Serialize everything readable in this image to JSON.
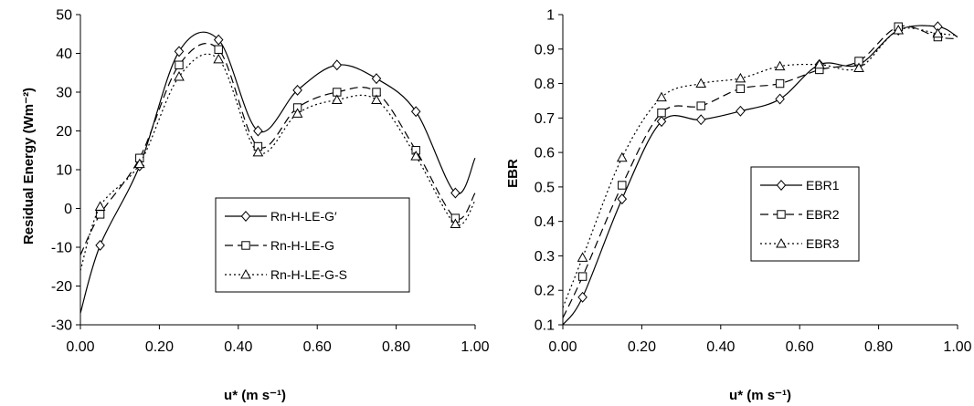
{
  "chart_data": [
    {
      "type": "line",
      "ylabel": "Residual Energy (Wm⁻²)",
      "xlabel": "u* (m s⁻¹)",
      "xlim": [
        0,
        1.0
      ],
      "ylim": [
        -30,
        50
      ],
      "x_ticks": [
        "0.00",
        "0.20",
        "0.40",
        "0.60",
        "0.80",
        "1.00"
      ],
      "y_ticks": [
        "-30",
        "-20",
        "-10",
        "0",
        "10",
        "20",
        "30",
        "40",
        "50"
      ],
      "legend_position": "center-right",
      "grid": false,
      "series": [
        {
          "name": "Rn-H-LE-G′",
          "marker": "diamond",
          "dash": "solid",
          "x": [
            0.05,
            0.15,
            0.25,
            0.35,
            0.45,
            0.55,
            0.65,
            0.75,
            0.85,
            0.95
          ],
          "y": [
            -9.5,
            11,
            40.5,
            43.5,
            20,
            30.5,
            37,
            33.5,
            25,
            4
          ],
          "curve_start": -27,
          "curve_end": 13
        },
        {
          "name": "Rn-H-LE-G",
          "marker": "square",
          "dash": "long-dash",
          "x": [
            0.05,
            0.15,
            0.25,
            0.35,
            0.45,
            0.55,
            0.65,
            0.75,
            0.85,
            0.95
          ],
          "y": [
            -1.5,
            13,
            37,
            41,
            16,
            26,
            30,
            30,
            15,
            -2.5
          ],
          "curve_start": -12,
          "curve_end": 4
        },
        {
          "name": "Rn-H-LE-G-S",
          "marker": "triangle",
          "dash": "dotted",
          "x": [
            0.05,
            0.15,
            0.25,
            0.35,
            0.45,
            0.55,
            0.65,
            0.75,
            0.85,
            0.95
          ],
          "y": [
            0.5,
            11.5,
            34,
            38.5,
            14.5,
            24.5,
            28,
            28,
            13.5,
            -4
          ],
          "curve_start": -16,
          "curve_end": 2
        }
      ]
    },
    {
      "type": "line",
      "ylabel": "EBR",
      "xlabel": "u* (m s⁻¹)",
      "xlim": [
        0,
        1.0
      ],
      "ylim": [
        0.1,
        1.0
      ],
      "x_ticks": [
        "0.00",
        "0.20",
        "0.40",
        "0.60",
        "0.80",
        "1.00"
      ],
      "y_ticks": [
        "0.1",
        "0.2",
        "0.3",
        "0.4",
        "0.5",
        "0.6",
        "0.7",
        "0.8",
        "0.9",
        "1"
      ],
      "legend_position": "center-right",
      "grid": false,
      "series": [
        {
          "name": "EBR1",
          "marker": "diamond",
          "dash": "solid",
          "x": [
            0.05,
            0.15,
            0.25,
            0.35,
            0.45,
            0.55,
            0.65,
            0.75,
            0.85,
            0.95
          ],
          "y": [
            0.18,
            0.465,
            0.69,
            0.695,
            0.72,
            0.755,
            0.855,
            0.855,
            0.955,
            0.965
          ],
          "curve_start": 0.1,
          "curve_end": 0.935
        },
        {
          "name": "EBR2",
          "marker": "square",
          "dash": "long-dash",
          "x": [
            0.05,
            0.15,
            0.25,
            0.35,
            0.45,
            0.55,
            0.65,
            0.75,
            0.85,
            0.95
          ],
          "y": [
            0.24,
            0.505,
            0.715,
            0.735,
            0.785,
            0.8,
            0.84,
            0.865,
            0.965,
            0.935
          ],
          "curve_start": 0.12,
          "curve_end": 0.93
        },
        {
          "name": "EBR3",
          "marker": "triangle",
          "dash": "dotted",
          "x": [
            0.05,
            0.15,
            0.25,
            0.35,
            0.45,
            0.55,
            0.65,
            0.75,
            0.85,
            0.95
          ],
          "y": [
            0.295,
            0.585,
            0.76,
            0.8,
            0.815,
            0.85,
            0.855,
            0.845,
            0.955,
            0.945
          ],
          "curve_start": 0.15,
          "curve_end": 0.94
        }
      ]
    }
  ]
}
